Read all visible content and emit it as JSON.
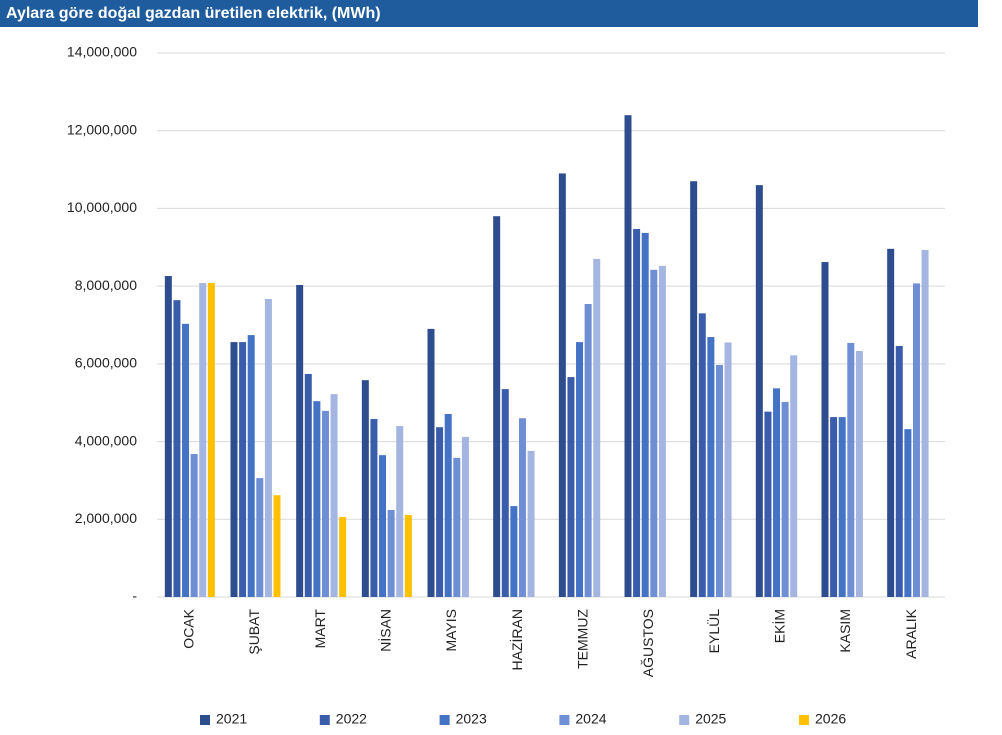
{
  "chart_data": {
    "type": "bar",
    "title": "Aylara göre doğal gazdan üretilen elektrik, (MWh)",
    "categories": [
      "OCAK",
      "ŞUBAT",
      "MART",
      "NİSAN",
      "MAYIS",
      "HAZİRAN",
      "TEMMUZ",
      "AĞUSTOS",
      "EYLÜL",
      "EKİM",
      "KASIM",
      "ARALIK"
    ],
    "series": [
      {
        "name": "2021",
        "color": "#2e4d8f",
        "values": [
          8260000,
          6560000,
          8030000,
          5580000,
          6900000,
          9800000,
          10900000,
          12400000,
          10700000,
          10600000,
          8620000,
          8960000
        ]
      },
      {
        "name": "2022",
        "color": "#3a5dab",
        "values": [
          7640000,
          6560000,
          5740000,
          4580000,
          4370000,
          5350000,
          5660000,
          9470000,
          7300000,
          4770000,
          4630000,
          6460000
        ]
      },
      {
        "name": "2023",
        "color": "#4472c4",
        "values": [
          7030000,
          6740000,
          5040000,
          3650000,
          4710000,
          2340000,
          6560000,
          9370000,
          6690000,
          5370000,
          4630000,
          4320000
        ]
      },
      {
        "name": "2024",
        "color": "#6f8fd4",
        "values": [
          3680000,
          3060000,
          4790000,
          2240000,
          3580000,
          4600000,
          7540000,
          8420000,
          5970000,
          5020000,
          6540000,
          8070000
        ]
      },
      {
        "name": "2025",
        "color": "#a3b5e0",
        "values": [
          8080000,
          7670000,
          5220000,
          4400000,
          4120000,
          3760000,
          8700000,
          8520000,
          6550000,
          6220000,
          6330000,
          8930000
        ]
      },
      {
        "name": "2026",
        "color": "#ffc000",
        "values": [
          8080000,
          2620000,
          2060000,
          2110000,
          null,
          null,
          null,
          null,
          null,
          null,
          null,
          null
        ]
      }
    ],
    "ylim": [
      0,
      14000000
    ],
    "yticks": [
      {
        "value": 0,
        "label": "-"
      },
      {
        "value": 2000000,
        "label": "2,000,000"
      },
      {
        "value": 4000000,
        "label": "4,000,000"
      },
      {
        "value": 6000000,
        "label": "6,000,000"
      },
      {
        "value": 8000000,
        "label": "8,000,000"
      },
      {
        "value": 10000000,
        "label": "10,000,000"
      },
      {
        "value": 12000000,
        "label": "12,000,000"
      },
      {
        "value": 14000000,
        "label": "14,000,000"
      }
    ],
    "grid": true,
    "legend": "bottom"
  }
}
